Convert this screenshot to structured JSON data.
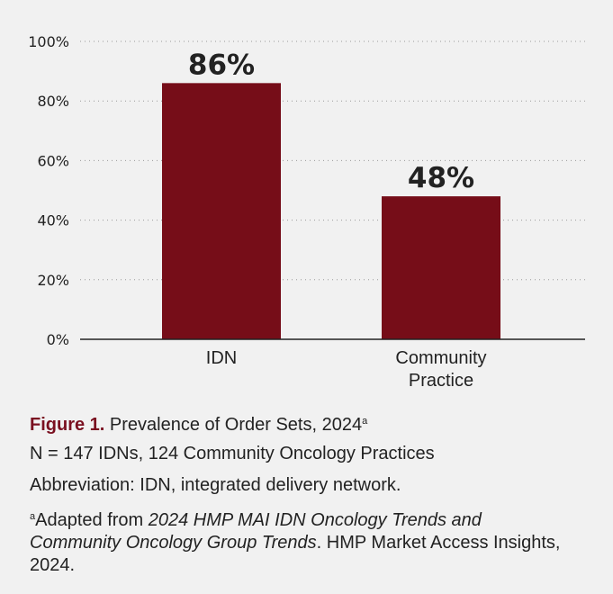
{
  "chart_data": {
    "type": "bar",
    "categories": [
      "IDN",
      "Community Practice"
    ],
    "category_lines": [
      [
        "IDN"
      ],
      [
        "Community",
        "Practice"
      ]
    ],
    "values": [
      86,
      48
    ],
    "data_labels": [
      "86%",
      "48%"
    ],
    "ylim": [
      0,
      100
    ],
    "yticks": [
      0,
      20,
      40,
      60,
      80,
      100
    ],
    "ytick_labels": [
      "0%",
      "20%",
      "40%",
      "60%",
      "80%",
      "100%"
    ],
    "grid": "horizontal dotted",
    "bar_color": "#760d18"
  },
  "caption": {
    "figure_label": "Figure 1.",
    "title": "Prevalence of Order Sets, 2024",
    "title_sup": "a",
    "n_line": "N = 147 IDNs, 124 Community Oncology Practices",
    "abbreviation": "Abbreviation: IDN, integrated delivery network.",
    "footnote_sup": "a",
    "footnote_prefix": "Adapted from ",
    "footnote_italic": "2024 HMP MAI IDN Oncology Trends and Community Oncology Group Trends",
    "footnote_suffix": ". HMP Market Access Insights, 2024.",
    "label_color": "#7a1020"
  }
}
